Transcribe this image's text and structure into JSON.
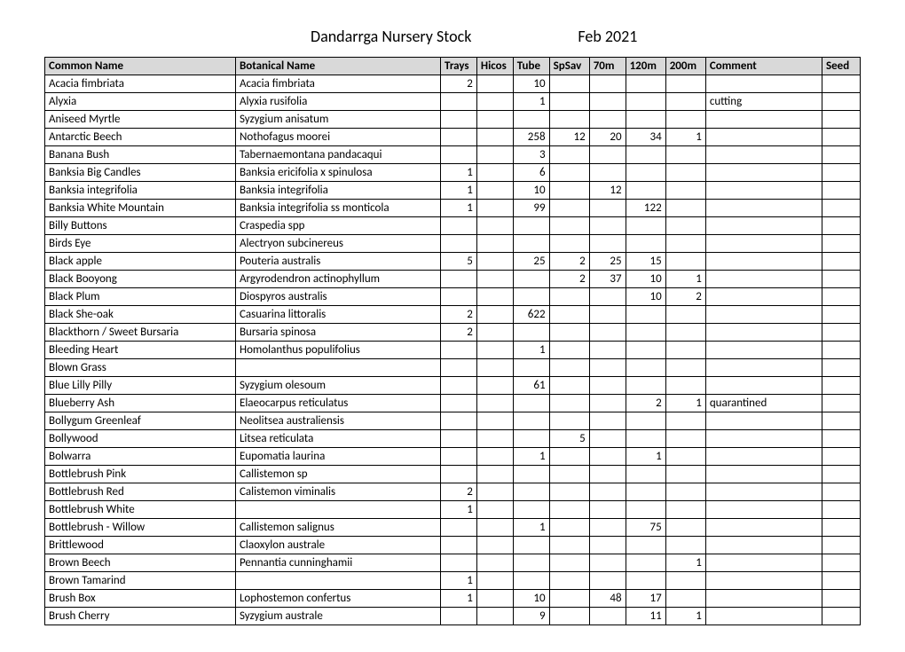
{
  "title": "Dandarrga Nursery Stock",
  "date": "Feb 2021",
  "columns": [
    "Common Name",
    "Botanical Name",
    "Trays",
    "Hicos",
    "Tube",
    "SpSav",
    "70m",
    "120m",
    "200m",
    "Comment",
    "Seed"
  ],
  "numeric_cols": [
    2,
    3,
    4,
    5,
    6,
    7,
    8
  ],
  "rows": [
    [
      "Acacia fimbriata",
      "Acacia fimbriata",
      "2",
      "",
      "10",
      "",
      "",
      "",
      "",
      "",
      ""
    ],
    [
      "Alyxia",
      "Alyxia rusifolia",
      "",
      "",
      "1",
      "",
      "",
      "",
      "",
      "cutting",
      ""
    ],
    [
      "Aniseed Myrtle",
      "Syzygium anisatum",
      "",
      "",
      "",
      "",
      "",
      "",
      "",
      "",
      ""
    ],
    [
      "Antarctic Beech",
      "Nothofagus moorei",
      "",
      "",
      "258",
      "12",
      "20",
      "34",
      "1",
      "",
      ""
    ],
    [
      "Banana Bush",
      "Tabernaemontana pandacaqui",
      "",
      "",
      "3",
      "",
      "",
      "",
      "",
      "",
      ""
    ],
    [
      "Banksia Big Candles",
      "Banksia ericifolia x spinulosa",
      "1",
      "",
      "6",
      "",
      "",
      "",
      "",
      "",
      ""
    ],
    [
      "Banksia integrifolia",
      "Banksia integrifolia",
      "1",
      "",
      "10",
      "",
      "12",
      "",
      "",
      "",
      ""
    ],
    [
      "Banksia White Mountain",
      "Banksia integrifolia ss monticola",
      "1",
      "",
      "99",
      "",
      "",
      "122",
      "",
      "",
      ""
    ],
    [
      "Billy Buttons",
      "Craspedia spp",
      "",
      "",
      "",
      "",
      "",
      "",
      "",
      "",
      ""
    ],
    [
      "Birds Eye",
      "Alectryon subcinereus",
      "",
      "",
      "",
      "",
      "",
      "",
      "",
      "",
      ""
    ],
    [
      "Black apple",
      "Pouteria australis",
      "5",
      "",
      "25",
      "2",
      "25",
      "15",
      "",
      "",
      ""
    ],
    [
      "Black Booyong",
      "Argyrodendron actinophyllum",
      "",
      "",
      "",
      "2",
      "37",
      "10",
      "1",
      "",
      ""
    ],
    [
      "Black Plum",
      "Diospyros australis",
      "",
      "",
      "",
      "",
      "",
      "10",
      "2",
      "",
      ""
    ],
    [
      "Black She-oak",
      "Casuarina littoralis",
      "2",
      "",
      "622",
      "",
      "",
      "",
      "",
      "",
      ""
    ],
    [
      "Blackthorn / Sweet Bursaria",
      "Bursaria spinosa",
      "2",
      "",
      "",
      "",
      "",
      "",
      "",
      "",
      ""
    ],
    [
      "Bleeding Heart",
      "Homolanthus populifolius",
      "",
      "",
      "1",
      "",
      "",
      "",
      "",
      "",
      ""
    ],
    [
      "Blown Grass",
      "",
      "",
      "",
      "",
      "",
      "",
      "",
      "",
      "",
      ""
    ],
    [
      "Blue Lilly Pilly",
      "Syzygium olesoum",
      "",
      "",
      "61",
      "",
      "",
      "",
      "",
      "",
      ""
    ],
    [
      "Blueberry Ash",
      "Elaeocarpus reticulatus",
      "",
      "",
      "",
      "",
      "",
      "2",
      "1",
      "quarantined",
      ""
    ],
    [
      "Bollygum Greenleaf",
      "Neolitsea australiensis",
      "",
      "",
      "",
      "",
      "",
      "",
      "",
      "",
      ""
    ],
    [
      "Bollywood",
      "Litsea reticulata",
      "",
      "",
      "",
      "5",
      "",
      "",
      "",
      "",
      ""
    ],
    [
      "Bolwarra",
      "Eupomatia laurina",
      "",
      "",
      "1",
      "",
      "",
      "1",
      "",
      "",
      ""
    ],
    [
      "Bottlebrush Pink",
      "Callistemon sp",
      "",
      "",
      "",
      "",
      "",
      "",
      "",
      "",
      ""
    ],
    [
      "Bottlebrush Red",
      "Calistemon viminalis",
      "2",
      "",
      "",
      "",
      "",
      "",
      "",
      "",
      ""
    ],
    [
      "Bottlebrush White",
      "",
      "1",
      "",
      "",
      "",
      "",
      "",
      "",
      "",
      ""
    ],
    [
      "Bottlebrush - Willow",
      "Callistemon salignus",
      "",
      "",
      "1",
      "",
      "",
      "75",
      "",
      "",
      ""
    ],
    [
      "Brittlewood",
      "Claoxylon australe",
      "",
      "",
      "",
      "",
      "",
      "",
      "",
      "",
      ""
    ],
    [
      "Brown Beech",
      "Pennantia cunninghamii",
      "",
      "",
      "",
      "",
      "",
      "",
      "1",
      "",
      ""
    ],
    [
      "Brown Tamarind",
      "",
      "1",
      "",
      "",
      "",
      "",
      "",
      "",
      "",
      ""
    ],
    [
      "Brush Box",
      "Lophostemon confertus",
      "1",
      "",
      "10",
      "",
      "48",
      "17",
      "",
      "",
      ""
    ],
    [
      "Brush Cherry",
      "Syzygium australe",
      "",
      "",
      "9",
      "",
      "",
      "11",
      "1",
      "",
      ""
    ]
  ]
}
